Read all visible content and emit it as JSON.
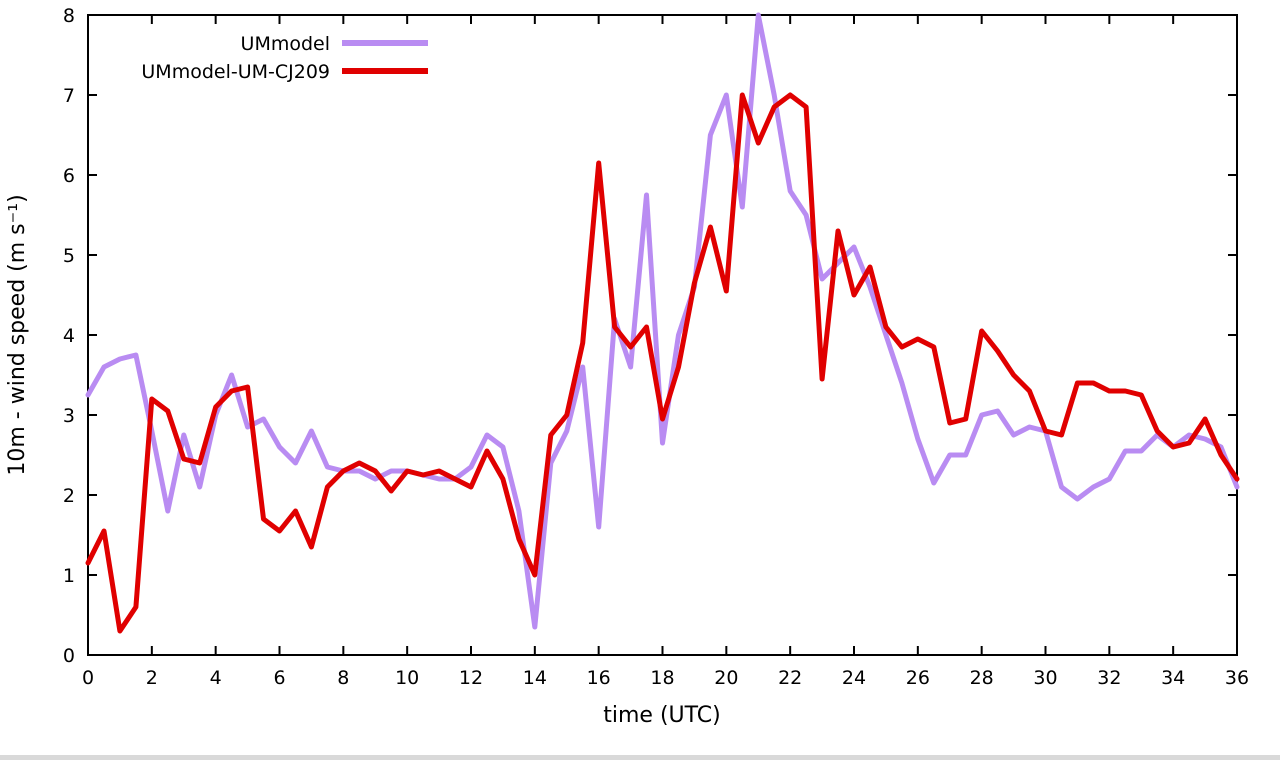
{
  "chart_data": {
    "type": "line",
    "title": "",
    "xlabel": "time (UTC)",
    "ylabel": "10m - wind speed  (m s⁻¹)",
    "xlim": [
      0,
      36
    ],
    "ylim": [
      0,
      8
    ],
    "xticks": [
      0,
      2,
      4,
      6,
      8,
      10,
      12,
      14,
      16,
      18,
      20,
      22,
      24,
      26,
      28,
      30,
      32,
      34,
      36
    ],
    "yticks": [
      0,
      1,
      2,
      3,
      4,
      5,
      6,
      7,
      8
    ],
    "grid": false,
    "legend_position": "top-left-inside",
    "x": [
      0,
      0.5,
      1,
      1.5,
      2,
      2.5,
      3,
      3.5,
      4,
      4.5,
      5,
      5.5,
      6,
      6.5,
      7,
      7.5,
      8,
      8.5,
      9,
      9.5,
      10,
      10.5,
      11,
      11.5,
      12,
      12.5,
      13,
      13.5,
      14,
      14.5,
      15,
      15.5,
      16,
      16.5,
      17,
      17.5,
      18,
      18.5,
      19,
      19.5,
      20,
      20.5,
      21,
      21.5,
      22,
      22.5,
      23,
      23.5,
      24,
      24.5,
      25,
      25.5,
      26,
      26.5,
      27,
      27.5,
      28,
      28.5,
      29,
      29.5,
      30,
      30.5,
      31,
      31.5,
      32,
      32.5,
      33,
      33.5,
      34,
      34.5,
      35,
      35.5,
      36
    ],
    "series": [
      {
        "name": "UMmodel",
        "color": "#b98cf2",
        "values": [
          3.25,
          3.6,
          3.7,
          3.75,
          2.8,
          1.8,
          2.75,
          2.1,
          3.0,
          3.5,
          2.85,
          2.95,
          2.6,
          2.4,
          2.8,
          2.35,
          2.3,
          2.3,
          2.2,
          2.3,
          2.3,
          2.25,
          2.2,
          2.2,
          2.35,
          2.75,
          2.6,
          1.8,
          0.35,
          2.4,
          2.8,
          3.6,
          1.6,
          4.2,
          3.6,
          5.75,
          2.65,
          4.0,
          4.6,
          6.5,
          7.0,
          5.6,
          8.0,
          7.0,
          5.8,
          5.5,
          4.7,
          4.9,
          5.1,
          4.6,
          4.0,
          3.4,
          2.7,
          2.15,
          2.5,
          2.5,
          3.0,
          3.05,
          2.75,
          2.85,
          2.8,
          2.1,
          1.95,
          2.1,
          2.2,
          2.55,
          2.55,
          2.75,
          2.6,
          2.75,
          2.7,
          2.6,
          2.1
        ]
      },
      {
        "name": "UMmodel-UM-CJ209",
        "color": "#e00000",
        "values": [
          1.15,
          1.55,
          0.3,
          0.6,
          3.2,
          3.05,
          2.45,
          2.4,
          3.1,
          3.3,
          3.35,
          1.7,
          1.55,
          1.8,
          1.35,
          2.1,
          2.3,
          2.4,
          2.3,
          2.05,
          2.3,
          2.25,
          2.3,
          2.2,
          2.1,
          2.55,
          2.2,
          1.45,
          1.0,
          2.75,
          3.0,
          3.9,
          6.15,
          4.1,
          3.85,
          4.1,
          2.95,
          3.6,
          4.65,
          5.35,
          4.55,
          7.0,
          6.4,
          6.85,
          7.0,
          6.85,
          3.45,
          5.3,
          4.5,
          4.85,
          4.1,
          3.85,
          3.95,
          3.85,
          2.9,
          2.95,
          4.05,
          3.8,
          3.5,
          3.3,
          2.8,
          2.75,
          3.4,
          3.4,
          3.3,
          3.3,
          3.25,
          2.8,
          2.6,
          2.65,
          2.95,
          2.5,
          2.2
        ]
      }
    ]
  }
}
